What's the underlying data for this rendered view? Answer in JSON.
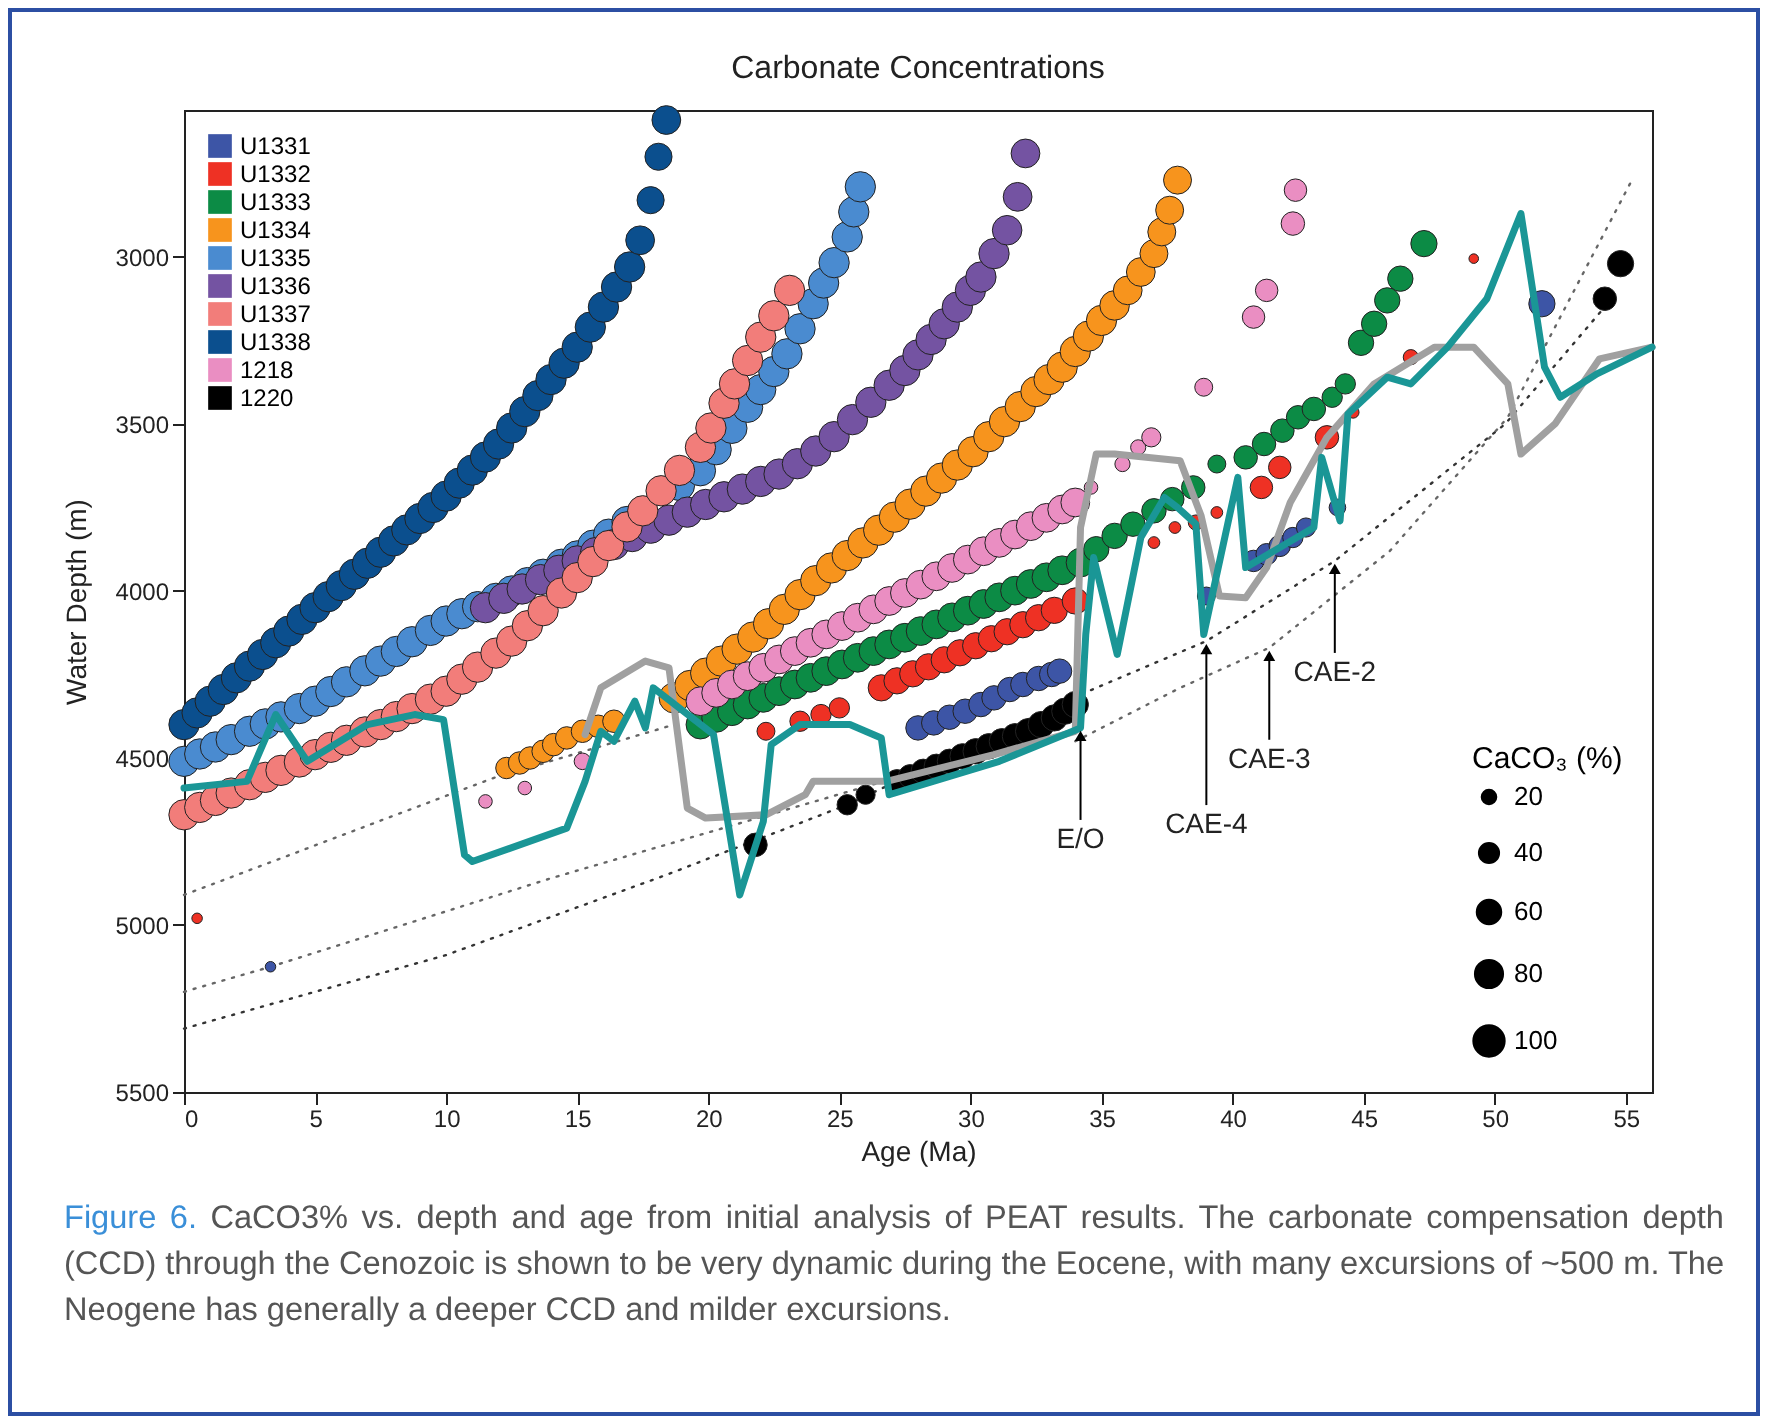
{
  "chart_data": {
    "type": "bubble",
    "title": "Carbonate Concentrations",
    "xlabel": "Age (Ma)",
    "ylabel": "Water Depth (m)",
    "legend_title": "CaCO₃ (%)",
    "legend": "top left",
    "xlim": [
      0,
      56
    ],
    "xticks": [
      0,
      5,
      10,
      15,
      20,
      25,
      30,
      35,
      40,
      45,
      50,
      55
    ],
    "ylim": [
      5500,
      2560
    ],
    "yticks": [
      3000,
      3500,
      4000,
      4500,
      5000,
      5500
    ],
    "size_legend": [
      20,
      40,
      60,
      80,
      100
    ],
    "annotations": [
      {
        "text": "E/O",
        "x": 34.2,
        "y": 4410
      },
      {
        "text": "CAE-4",
        "x": 39,
        "y": 4150
      },
      {
        "text": "CAE-3",
        "x": 41.4,
        "y": 4170
      },
      {
        "text": "CAE-2",
        "x": 43.9,
        "y": 3910
      },
      "Figure 6.",
      "CaCO3% vs. depth and age from initial analysis of PEAT results. The carbonate compensation depth (CCD) through the Cenozoic is shown to be very dynamic during the Eocene, with many excursions of ~500 m. The Neogene has generally a deeper CCD and milder excursions."
    ],
    "series": [
      {
        "type": "line",
        "line_style": "dotted",
        "color": "#333333",
        "x": [
          0,
          10,
          18.4,
          25.3,
          34.2,
          39,
          43.9,
          50.4,
          54.3
        ],
        "values": [
          5310,
          5090,
          4850,
          4640,
          4310,
          4150,
          3910,
          3500,
          3140
        ]
      },
      {
        "type": "line",
        "line_style": "dotted",
        "color": "#666666",
        "x": [
          0,
          3.3,
          14,
          28
        ],
        "values": [
          5200,
          5125,
          4860,
          4540
        ]
      },
      {
        "type": "line",
        "line_style": "dotted",
        "color": "#666666",
        "x": [
          0,
          11.8,
          18.7
        ],
        "values": [
          4910,
          4560,
          4400
        ]
      },
      {
        "type": "line",
        "line_style": "dotted",
        "color": "#666666",
        "x": [
          34,
          38,
          41.4,
          46,
          50.5,
          55.3
        ],
        "values": [
          4450,
          4290,
          4170,
          3880,
          3480,
          2760
        ]
      },
      {
        "name": "U1331",
        "color": "#3d55a6",
        "x": [
          3.3,
          28,
          28.6,
          29.2,
          29.8,
          30.4,
          30.9,
          31.5,
          32,
          32.6,
          33.1,
          33.4,
          39,
          40.8,
          41.3,
          41.8,
          42.3,
          42.8,
          44,
          51.8
        ],
        "values": [
          5125,
          4410,
          4395,
          4378,
          4360,
          4340,
          4320,
          4295,
          4280,
          4262,
          4250,
          4240,
          4015,
          3910,
          3890,
          3865,
          3840,
          3810,
          3750,
          3140
        ],
        "sizes": [
          12,
          65,
          65,
          65,
          65,
          65,
          65,
          65,
          65,
          65,
          65,
          65,
          35,
          50,
          50,
          50,
          45,
          40,
          30,
          75
        ]
      },
      {
        "name": "U1332",
        "color": "#ee3124",
        "x": [
          0.5,
          22.2,
          23.5,
          24.3,
          25,
          26.6,
          27.2,
          27.8,
          28.4,
          29,
          29.6,
          30.2,
          30.8,
          31.4,
          32,
          32.6,
          33.2,
          34,
          37,
          37.8,
          38.6,
          39.4,
          41.1,
          41.8,
          43.6,
          44.6,
          46.8,
          49.2
        ],
        "values": [
          4980,
          4420,
          4390,
          4370,
          4350,
          4290,
          4269,
          4248,
          4227,
          4206,
          4185,
          4164,
          4143,
          4122,
          4101,
          4080,
          4058,
          4030,
          3855,
          3810,
          3795,
          3765,
          3690,
          3630,
          3540,
          3465,
          3300,
          3005
        ],
        "sizes": [
          12,
          35,
          45,
          45,
          45,
          75,
          75,
          75,
          75,
          75,
          75,
          75,
          75,
          75,
          75,
          75,
          75,
          75,
          15,
          15,
          25,
          15,
          55,
          55,
          60,
          15,
          25,
          10
        ]
      },
      {
        "name": "U1333",
        "color": "#0c8b45",
        "x": [
          19.7,
          20.3,
          20.9,
          21.5,
          22.1,
          22.7,
          23.3,
          23.9,
          24.5,
          25.1,
          25.7,
          26.3,
          26.9,
          27.5,
          28.1,
          28.7,
          29.3,
          29.9,
          30.5,
          31.1,
          31.7,
          32.3,
          32.9,
          33.5,
          34.2,
          34.8,
          35.5,
          36.2,
          37,
          37.7,
          38.5,
          39.4,
          40.5,
          41.2,
          41.9,
          42.5,
          43.1,
          43.8,
          44.3,
          44.9,
          45.4,
          45.9,
          46.4,
          47.3
        ],
        "values": [
          4400,
          4380,
          4360,
          4340,
          4320,
          4300,
          4280,
          4260,
          4240,
          4220,
          4200,
          4180,
          4160,
          4140,
          4120,
          4100,
          4079,
          4059,
          4039,
          4019,
          3999,
          3979,
          3959,
          3938,
          3915,
          3875,
          3835,
          3800,
          3760,
          3725,
          3690,
          3620,
          3600,
          3560,
          3520,
          3480,
          3455,
          3420,
          3380,
          3257,
          3200,
          3130,
          3065,
          2960
        ],
        "sizes": [
          90,
          90,
          90,
          90,
          90,
          90,
          90,
          90,
          90,
          90,
          90,
          90,
          90,
          90,
          90,
          90,
          90,
          90,
          90,
          90,
          90,
          90,
          90,
          90,
          90,
          70,
          70,
          65,
          65,
          60,
          60,
          35,
          60,
          60,
          60,
          60,
          60,
          45,
          45,
          70,
          70,
          70,
          70,
          75
        ]
      },
      {
        "name": "U1334",
        "color": "#f7941d",
        "x": [
          12.3,
          12.8,
          13.2,
          13.7,
          14.1,
          14.6,
          15.2,
          15.8,
          16.4,
          18.7,
          19.3,
          19.9,
          20.5,
          21.1,
          21.7,
          22.3,
          22.9,
          23.5,
          24.1,
          24.7,
          25.3,
          25.9,
          26.5,
          27.1,
          27.7,
          28.3,
          28.9,
          29.5,
          30.1,
          30.7,
          31.3,
          31.9,
          32.5,
          33,
          33.5,
          34,
          34.5,
          35,
          35.5,
          36,
          36.5,
          37,
          37.3,
          37.6,
          37.9
        ],
        "values": [
          4530,
          4515,
          4500,
          4480,
          4460,
          4440,
          4420,
          4405,
          4390,
          4320,
          4283,
          4246,
          4210,
          4174,
          4138,
          4098,
          4055,
          4011,
          3969,
          3931,
          3894,
          3856,
          3818,
          3779,
          3740,
          3701,
          3662,
          3623,
          3583,
          3538,
          3493,
          3448,
          3403,
          3367,
          3330,
          3283,
          3237,
          3190,
          3145,
          3100,
          3045,
          2990,
          2925,
          2860,
          2770
        ],
        "sizes": [
          50,
          55,
          55,
          55,
          55,
          55,
          55,
          55,
          55,
          100,
          100,
          100,
          100,
          100,
          100,
          100,
          100,
          100,
          100,
          100,
          100,
          100,
          100,
          100,
          100,
          100,
          100,
          100,
          100,
          100,
          100,
          100,
          100,
          100,
          100,
          100,
          100,
          100,
          95,
          90,
          90,
          85,
          85,
          85,
          85
        ]
      },
      {
        "name": "U1335",
        "color": "#4a8bd0",
        "x": [
          0,
          0.6,
          1.2,
          1.8,
          2.5,
          3.1,
          3.7,
          4.4,
          5,
          5.6,
          6.2,
          6.9,
          7.5,
          8.1,
          8.7,
          9.4,
          10,
          10.6,
          11.2,
          11.9,
          12.5,
          13.1,
          13.7,
          14.4,
          15,
          15.6,
          16.2,
          16.9,
          18.9,
          19.7,
          20.3,
          20.9,
          21.5,
          22,
          22.5,
          23,
          23.5,
          24,
          24.4,
          24.8,
          25.3,
          25.55,
          25.8
        ],
        "values": [
          4510,
          4488,
          4467,
          4445,
          4420,
          4398,
          4377,
          4352,
          4330,
          4301,
          4272,
          4239,
          4210,
          4181,
          4152,
          4118,
          4090,
          4068,
          4047,
          4022,
          4000,
          3975,
          3950,
          3920,
          3895,
          3863,
          3830,
          3792,
          3684,
          3640,
          3577,
          3513,
          3450,
          3397,
          3343,
          3290,
          3215,
          3140,
          3078,
          3017,
          2940,
          2865,
          2790
        ],
        "sizes": [
          100,
          100,
          100,
          100,
          100,
          100,
          100,
          100,
          100,
          100,
          100,
          100,
          100,
          100,
          100,
          100,
          100,
          100,
          100,
          100,
          100,
          100,
          100,
          100,
          100,
          100,
          100,
          100,
          100,
          100,
          100,
          100,
          100,
          100,
          100,
          100,
          100,
          100,
          100,
          100,
          100,
          100,
          100
        ]
      },
      {
        "name": "U1336",
        "color": "#7453a2",
        "x": [
          11.5,
          12.2,
          12.9,
          13.6,
          14.3,
          15,
          15.7,
          16.4,
          17.1,
          17.8,
          18.5,
          19.2,
          19.9,
          20.6,
          21.3,
          22,
          22.7,
          23.4,
          24.1,
          24.8,
          25.5,
          26.2,
          26.9,
          27.5,
          28,
          28.5,
          29,
          29.5,
          30,
          30.4,
          30.9,
          31.4,
          31.8,
          32.1
        ],
        "values": [
          4050,
          4022,
          3994,
          3966,
          3938,
          3910,
          3885,
          3861,
          3837,
          3812,
          3788,
          3764,
          3741,
          3718,
          3695,
          3672,
          3650,
          3619,
          3581,
          3538,
          3487,
          3435,
          3384,
          3340,
          3293,
          3247,
          3200,
          3150,
          3100,
          3060,
          2990,
          2920,
          2820,
          2690
        ],
        "sizes": [
          100,
          100,
          100,
          100,
          100,
          100,
          100,
          100,
          100,
          100,
          100,
          100,
          100,
          100,
          100,
          100,
          100,
          100,
          100,
          100,
          100,
          100,
          100,
          100,
          100,
          100,
          100,
          100,
          100,
          100,
          100,
          95,
          90,
          90
        ]
      },
      {
        "name": "U1337",
        "color": "#f27d7a",
        "x": [
          0,
          0.6,
          1.2,
          1.8,
          2.5,
          3.1,
          3.7,
          4.4,
          5,
          5.6,
          6.2,
          6.9,
          7.5,
          8.1,
          8.7,
          9.4,
          10,
          10.6,
          11.2,
          11.9,
          12.5,
          13.1,
          13.7,
          14.4,
          15,
          15.6,
          16.2,
          16.9,
          17.5,
          18.2,
          18.9,
          19.7,
          20.1,
          20.6,
          21,
          21.5,
          22,
          22.5,
          23.1
        ],
        "values": [
          4670,
          4648,
          4627,
          4605,
          4580,
          4558,
          4537,
          4512,
          4490,
          4468,
          4447,
          4422,
          4400,
          4376,
          4352,
          4324,
          4300,
          4264,
          4228,
          4186,
          4150,
          4104,
          4059,
          4006,
          3960,
          3912,
          3864,
          3808,
          3760,
          3700,
          3639,
          3570,
          3512,
          3438,
          3380,
          3310,
          3240,
          3176,
          3100
        ],
        "sizes": [
          100,
          100,
          100,
          100,
          100,
          100,
          100,
          100,
          100,
          100,
          100,
          100,
          100,
          100,
          100,
          100,
          100,
          100,
          100,
          100,
          100,
          100,
          100,
          100,
          100,
          100,
          100,
          100,
          100,
          100,
          100,
          100,
          100,
          100,
          100,
          100,
          100,
          100,
          100
        ]
      },
      {
        "name": "U1338",
        "color": "#0b4f8e",
        "x": [
          0,
          0.5,
          1,
          1.5,
          2,
          2.5,
          3,
          3.5,
          4,
          4.5,
          5,
          5.5,
          6,
          6.5,
          7,
          7.5,
          8,
          8.5,
          9,
          9.5,
          10,
          10.5,
          11,
          11.5,
          12,
          12.5,
          13,
          13.5,
          14,
          14.5,
          15,
          15.5,
          16,
          16.5,
          17,
          17.4,
          17.8,
          18.1,
          18.4
        ],
        "values": [
          4400,
          4365,
          4330,
          4295,
          4260,
          4225,
          4190,
          4155,
          4120,
          4085,
          4050,
          4017,
          3984,
          3950,
          3917,
          3884,
          3850,
          3817,
          3783,
          3750,
          3716,
          3677,
          3638,
          3599,
          3560,
          3512,
          3463,
          3415,
          3367,
          3318,
          3270,
          3210,
          3150,
          3090,
          3030,
          2950,
          2830,
          2700,
          2590
        ],
        "sizes": [
          100,
          100,
          100,
          100,
          100,
          100,
          100,
          100,
          100,
          100,
          100,
          100,
          100,
          100,
          100,
          100,
          100,
          100,
          100,
          100,
          100,
          100,
          100,
          100,
          100,
          100,
          100,
          100,
          100,
          100,
          100,
          100,
          100,
          100,
          100,
          90,
          80,
          80,
          90
        ]
      },
      {
        "name": "1218",
        "color": "#ea8ec2",
        "x": [
          11.5,
          13,
          15.2,
          19.7,
          20.3,
          20.9,
          21.5,
          22.1,
          22.7,
          23.3,
          23.9,
          24.5,
          25.1,
          25.7,
          26.3,
          26.9,
          27.5,
          28.1,
          28.7,
          29.3,
          29.9,
          30.5,
          31.1,
          31.7,
          32.3,
          32.9,
          33.5,
          34,
          34.6,
          35.8,
          36.4,
          36.9,
          38.9,
          40.8,
          41.3,
          42.3,
          42.4
        ],
        "values": [
          4630,
          4590,
          4510,
          4330,
          4305,
          4280,
          4255,
          4230,
          4205,
          4180,
          4155,
          4130,
          4105,
          4080,
          4055,
          4030,
          4006,
          3981,
          3956,
          3931,
          3906,
          3881,
          3856,
          3831,
          3806,
          3781,
          3756,
          3735,
          3690,
          3620,
          3570,
          3540,
          3390,
          3180,
          3100,
          2900,
          2800
        ],
        "sizes": [
          20,
          20,
          30,
          90,
          90,
          90,
          90,
          90,
          90,
          90,
          90,
          90,
          90,
          90,
          90,
          90,
          90,
          90,
          90,
          90,
          90,
          90,
          90,
          90,
          90,
          90,
          90,
          90,
          20,
          25,
          25,
          40,
          35,
          55,
          55,
          60,
          55
        ]
      },
      {
        "name": "1220",
        "color": "#000000",
        "x": [
          21.8,
          25.3,
          26,
          27.2,
          27.7,
          28.2,
          28.7,
          29.2,
          29.7,
          30.2,
          30.7,
          31.2,
          31.7,
          32.2,
          32.7,
          33.2,
          33.6,
          34,
          54.2,
          54.8
        ],
        "values": [
          4760,
          4640,
          4610,
          4570,
          4555,
          4540,
          4525,
          4510,
          4495,
          4480,
          4465,
          4450,
          4435,
          4420,
          4400,
          4380,
          4360,
          4340,
          3125,
          3020
        ],
        "sizes": [
          60,
          45,
          40,
          60,
          60,
          65,
          65,
          65,
          70,
          70,
          70,
          70,
          70,
          70,
          75,
          75,
          75,
          75,
          60,
          75
        ]
      },
      {
        "type": "line",
        "line_style": "solid",
        "color": "#a0a0a0",
        "x": [
          15.3,
          15.9,
          17.6,
          18.5,
          19.2,
          19.9,
          22.2,
          23.7,
          24,
          26.8,
          30.9,
          34,
          34.2,
          34.8,
          35.5,
          38,
          38.8,
          39.5,
          40.5,
          41.3,
          42.2,
          43.6,
          45.4,
          47.7,
          49.2,
          50.5,
          51,
          52.3,
          54,
          56
        ],
        "values": [
          4430,
          4290,
          4210,
          4230,
          4650,
          4680,
          4670,
          4610,
          4570,
          4570,
          4490,
          4420,
          3810,
          3590,
          3590,
          3610,
          3775,
          4015,
          4020,
          3930,
          3735,
          3540,
          3380,
          3270,
          3270,
          3380,
          3590,
          3500,
          3305,
          3270
        ]
      },
      {
        "type": "line",
        "line_style": "solid",
        "color": "#1a9696",
        "x": [
          0,
          2.4,
          3.5,
          4.7,
          7,
          8.8,
          9.9,
          10.7,
          11,
          14.6,
          15.3,
          15.9,
          16.4,
          17.2,
          17.6,
          17.9,
          20.2,
          21.2,
          22.1,
          22.4,
          23.5,
          25.4,
          26.6,
          26.9,
          31.1,
          34.2,
          34.4,
          34.7,
          35.6,
          36.5,
          37.4,
          37.9,
          38.6,
          38.9,
          40.2,
          40.5,
          43.1,
          43.4,
          44.1,
          44.4,
          45.9,
          46.8,
          48.2,
          49.7,
          51,
          51.9,
          52.5,
          53.9,
          56
        ],
        "values": [
          4590,
          4570,
          4370,
          4510,
          4400,
          4370,
          4385,
          4790,
          4810,
          4710,
          4570,
          4420,
          4450,
          4330,
          4410,
          4290,
          4430,
          4910,
          4690,
          4460,
          4400,
          4400,
          4440,
          4610,
          4510,
          4410,
          4130,
          3900,
          4190,
          3840,
          3720,
          3750,
          3800,
          4130,
          3660,
          3930,
          3810,
          3600,
          3790,
          3470,
          3360,
          3380,
          3270,
          3125,
          2870,
          3330,
          3420,
          3350,
          3270
        ]
      }
    ]
  }
}
